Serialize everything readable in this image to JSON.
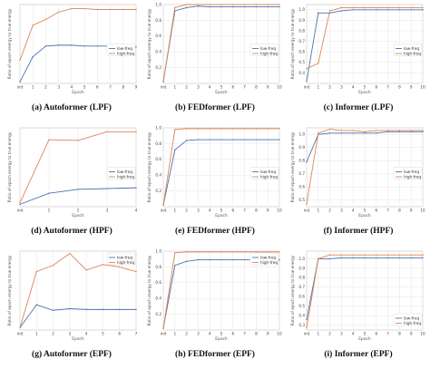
{
  "colors": {
    "low": "#4c72b0",
    "high": "#dd8452",
    "grid": "#e6e6e6",
    "frame": "#bfbfbf"
  },
  "chart_data": [
    {
      "type": "line",
      "caption": "(a) Autoformer (LPF)",
      "xlabel": "Epoch",
      "ylabel": "Ratio of epoch energy to true energy",
      "x": [
        "init",
        "1",
        "2",
        "3",
        "4",
        "5",
        "6",
        "7",
        "8",
        "9"
      ],
      "ylim": [
        0.1,
        1.05
      ],
      "yticks": [],
      "yticklabels": [],
      "legend": "center-right",
      "series": [
        {
          "name": "low-freq",
          "values": [
            0.12,
            0.42,
            0.55,
            0.56,
            0.56,
            0.55,
            0.55,
            0.55,
            0.54,
            0.54
          ]
        },
        {
          "name": "high-freq",
          "values": [
            0.38,
            0.8,
            0.87,
            0.96,
            1.0,
            1.0,
            0.99,
            0.99,
            0.99,
            0.99
          ]
        }
      ]
    },
    {
      "type": "line",
      "caption": "(b) FEDformer (LPF)",
      "xlabel": "Epoch",
      "ylabel": "Ratio of epoch energy to true energy",
      "x": [
        "init",
        "1",
        "2",
        "3",
        "4",
        "5",
        "6",
        "7",
        "8",
        "9",
        "10"
      ],
      "ylim": [
        0.0,
        1.0
      ],
      "yticks": [
        0.2,
        0.4,
        0.6,
        0.8,
        1.0
      ],
      "yticklabels": [
        "0.2",
        "0.4",
        "0.6",
        "0.8",
        "1.0"
      ],
      "legend": "center-right",
      "series": [
        {
          "name": "low-freq",
          "values": [
            0.02,
            0.92,
            0.96,
            0.98,
            0.97,
            0.97,
            0.97,
            0.97,
            0.97,
            0.97,
            0.97
          ]
        },
        {
          "name": "high-freq",
          "values": [
            0.02,
            0.96,
            1.0,
            1.0,
            1.0,
            1.0,
            1.0,
            1.0,
            1.0,
            1.0,
            1.0
          ]
        }
      ]
    },
    {
      "type": "line",
      "caption": "(c) Informer (LPF)",
      "xlabel": "Epoch",
      "ylabel": "Ratio of epoch energy to true energy",
      "x": [
        "init",
        "1",
        "2",
        "3",
        "4",
        "5",
        "6",
        "7",
        "8",
        "9",
        "10"
      ],
      "ylim": [
        0.3,
        1.05
      ],
      "yticks": [
        0.4,
        0.5,
        0.6,
        0.7,
        0.8,
        0.9,
        1.0
      ],
      "yticklabels": [
        "0.4",
        "0.5",
        "0.6",
        "0.7",
        "0.8",
        "0.9",
        "1.0"
      ],
      "legend": "center-right",
      "series": [
        {
          "name": "low-freq",
          "values": [
            0.32,
            0.97,
            0.97,
            0.99,
            1.0,
            1.0,
            1.0,
            1.0,
            1.0,
            1.0,
            1.0
          ]
        },
        {
          "name": "high-freq",
          "values": [
            0.44,
            0.49,
            0.99,
            1.02,
            1.02,
            1.02,
            1.02,
            1.02,
            1.02,
            1.02,
            1.02
          ]
        }
      ]
    },
    {
      "type": "line",
      "caption": "(d) Autoformer (HPF)",
      "xlabel": "Epoch",
      "ylabel": "Ratio of epoch energy to true energy",
      "x": [
        "init",
        "1",
        "2",
        "3",
        "4"
      ],
      "ylim": [
        0.0,
        1.0
      ],
      "yticks": [],
      "yticklabels": [],
      "legend": "center-right",
      "series": [
        {
          "name": "low-freq",
          "values": [
            0.03,
            0.17,
            0.22,
            0.23,
            0.24
          ]
        },
        {
          "name": "high-freq",
          "values": [
            0.05,
            0.85,
            0.84,
            0.95,
            0.95
          ]
        }
      ]
    },
    {
      "type": "line",
      "caption": "(e) FEDformer (HPF)",
      "xlabel": "Epoch",
      "ylabel": "Ratio of epoch energy to true energy",
      "x": [
        "init",
        "1",
        "2",
        "3",
        "4",
        "5",
        "6",
        "7",
        "8",
        "9",
        "10"
      ],
      "ylim": [
        0.0,
        1.0
      ],
      "yticks": [
        0.2,
        0.4,
        0.6,
        0.8,
        1.0
      ],
      "yticklabels": [
        "0.2",
        "0.4",
        "0.6",
        "0.8",
        "1.0"
      ],
      "legend": "center-right",
      "series": [
        {
          "name": "low-freq",
          "values": [
            0.02,
            0.72,
            0.84,
            0.85,
            0.85,
            0.85,
            0.85,
            0.85,
            0.85,
            0.85,
            0.85
          ]
        },
        {
          "name": "high-freq",
          "values": [
            0.02,
            0.98,
            0.99,
            0.99,
            0.99,
            0.99,
            0.99,
            0.99,
            0.99,
            0.99,
            0.99
          ]
        }
      ]
    },
    {
      "type": "line",
      "caption": "(f) Informer (HPF)",
      "xlabel": "Epoch",
      "ylabel": "Ratio of epoch energy to true energy",
      "x": [
        "init",
        "1",
        "2",
        "3",
        "4",
        "5",
        "6",
        "7",
        "8",
        "9",
        "10"
      ],
      "ylim": [
        0.45,
        1.05
      ],
      "yticks": [
        0.5,
        0.6,
        0.7,
        0.8,
        0.9,
        1.0
      ],
      "yticklabels": [
        "0.5",
        "0.6",
        "0.7",
        "0.8",
        "0.9",
        "1.0"
      ],
      "legend": "center-right",
      "series": [
        {
          "name": "low-freq",
          "values": [
            0.79,
            1.0,
            1.01,
            1.01,
            1.01,
            1.01,
            1.01,
            1.02,
            1.02,
            1.02,
            1.02
          ]
        },
        {
          "name": "high-freq",
          "values": [
            0.47,
            1.01,
            1.04,
            1.03,
            1.03,
            1.02,
            1.03,
            1.03,
            1.03,
            1.03,
            1.03
          ]
        }
      ]
    },
    {
      "type": "line",
      "caption": "(g) Autoformer (EPF)",
      "xlabel": "Epoch",
      "ylabel": "Ratio of epoch energy to true energy",
      "x": [
        "init",
        "1",
        "2",
        "3",
        "4",
        "5",
        "6",
        "7"
      ],
      "ylim": [
        0.0,
        1.0
      ],
      "yticks": [],
      "yticklabels": [],
      "legend": "top-right",
      "series": [
        {
          "name": "low-freq",
          "values": [
            0.03,
            0.32,
            0.25,
            0.27,
            0.26,
            0.26,
            0.26,
            0.26
          ]
        },
        {
          "name": "high-freq",
          "values": [
            0.03,
            0.74,
            0.82,
            0.97,
            0.76,
            0.83,
            0.8,
            0.74
          ]
        }
      ]
    },
    {
      "type": "line",
      "caption": "(h) FEDformer (EPF)",
      "xlabel": "Epoch",
      "ylabel": "Ratio of epoch energy to true energy",
      "x": [
        "init",
        "1",
        "2",
        "3",
        "4",
        "5",
        "6",
        "7",
        "8",
        "9",
        "10"
      ],
      "ylim": [
        0.0,
        1.0
      ],
      "yticks": [
        0.2,
        0.4,
        0.6,
        0.8,
        1.0
      ],
      "yticklabels": [
        "0.2",
        "0.4",
        "0.6",
        "0.8",
        "1.0"
      ],
      "legend": "top-right",
      "series": [
        {
          "name": "low-freq",
          "values": [
            0.02,
            0.82,
            0.87,
            0.89,
            0.89,
            0.89,
            0.89,
            0.89,
            0.89,
            0.89,
            0.89
          ]
        },
        {
          "name": "high-freq",
          "values": [
            0.02,
            0.98,
            0.99,
            0.99,
            0.99,
            0.99,
            0.99,
            0.99,
            0.99,
            0.99,
            0.99
          ]
        }
      ]
    },
    {
      "type": "line",
      "caption": "(i) Informer (EPF)",
      "xlabel": "Epoch",
      "ylabel": "Ratio of epoch energy to true energy",
      "x": [
        "init",
        "1",
        "2",
        "3",
        "4",
        "5",
        "6",
        "7",
        "8",
        "9",
        "10"
      ],
      "ylim": [
        0.25,
        1.08
      ],
      "yticks": [
        0.3,
        0.4,
        0.5,
        0.6,
        0.7,
        0.8,
        0.9,
        1.0
      ],
      "yticklabels": [
        "0.3",
        "0.4",
        "0.5",
        "0.6",
        "0.7",
        "0.8",
        "0.9",
        "1.0"
      ],
      "legend": "bottom-right",
      "series": [
        {
          "name": "low-freq",
          "values": [
            0.36,
            1.0,
            1.0,
            1.01,
            1.01,
            1.01,
            1.01,
            1.01,
            1.01,
            1.01,
            1.01
          ]
        },
        {
          "name": "high-freq",
          "values": [
            0.27,
            1.0,
            1.04,
            1.04,
            1.04,
            1.04,
            1.04,
            1.04,
            1.04,
            1.04,
            1.04
          ]
        }
      ]
    }
  ]
}
